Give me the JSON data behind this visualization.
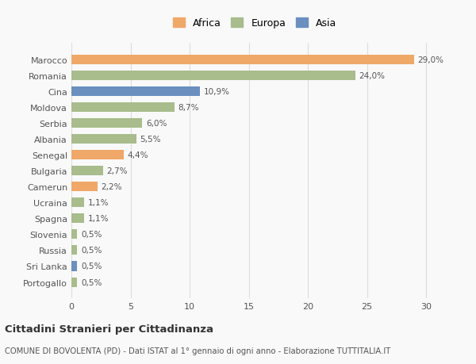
{
  "categories": [
    "Marocco",
    "Romania",
    "Cina",
    "Moldova",
    "Serbia",
    "Albania",
    "Senegal",
    "Bulgaria",
    "Camerun",
    "Ucraina",
    "Spagna",
    "Slovenia",
    "Russia",
    "Sri Lanka",
    "Portogallo"
  ],
  "values": [
    29.0,
    24.0,
    10.9,
    8.7,
    6.0,
    5.5,
    4.4,
    2.7,
    2.2,
    1.1,
    1.1,
    0.5,
    0.5,
    0.5,
    0.5
  ],
  "labels": [
    "29,0%",
    "24,0%",
    "10,9%",
    "8,7%",
    "6,0%",
    "5,5%",
    "4,4%",
    "2,7%",
    "2,2%",
    "1,1%",
    "1,1%",
    "0,5%",
    "0,5%",
    "0,5%",
    "0,5%"
  ],
  "continent": [
    "Africa",
    "Europa",
    "Asia",
    "Europa",
    "Europa",
    "Europa",
    "Africa",
    "Europa",
    "Africa",
    "Europa",
    "Europa",
    "Europa",
    "Europa",
    "Asia",
    "Europa"
  ],
  "colors": {
    "Africa": "#F0A868",
    "Europa": "#A8BC8C",
    "Asia": "#6B8FBF"
  },
  "legend_order": [
    "Africa",
    "Europa",
    "Asia"
  ],
  "xlim": [
    0,
    31
  ],
  "xticks": [
    0,
    5,
    10,
    15,
    20,
    25,
    30
  ],
  "title": "Cittadini Stranieri per Cittadinanza",
  "subtitle": "COMUNE DI BOVOLENTA (PD) - Dati ISTAT al 1° gennaio di ogni anno - Elaborazione TUTTITALIA.IT",
  "background_color": "#f9f9f9",
  "grid_color": "#dddddd",
  "bar_height": 0.6
}
